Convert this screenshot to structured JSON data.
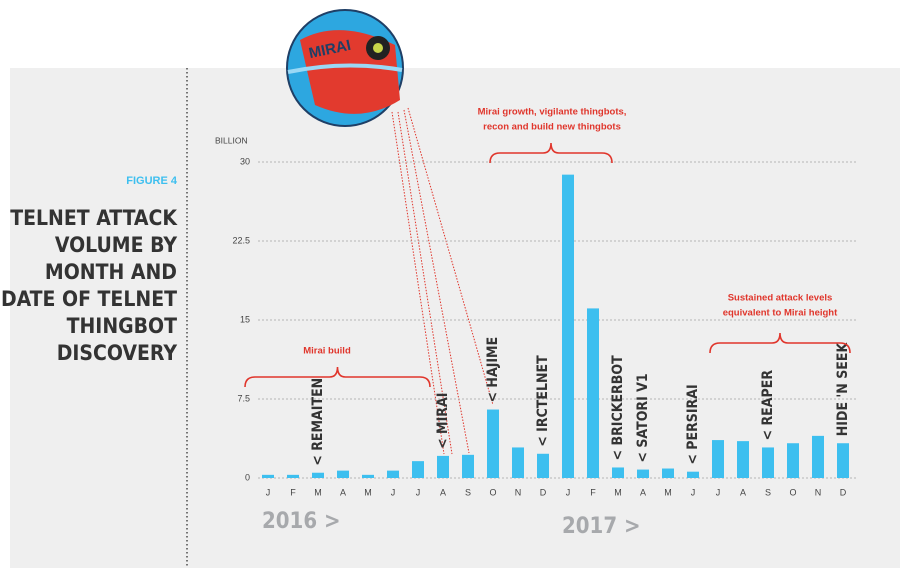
{
  "figure_label": "FIGURE 4",
  "title_lines": [
    "TELNET ATTACK",
    "VOLUME BY",
    "MONTH AND",
    "DATE OF TELNET",
    "THINGBOT",
    "DISCOVERY"
  ],
  "illustration_text": "MIRAI",
  "chart_data": {
    "type": "bar",
    "y_axis_label": "BILLION",
    "categories": [
      "J",
      "F",
      "M",
      "A",
      "M",
      "J",
      "J",
      "A",
      "S",
      "O",
      "N",
      "D",
      "J",
      "F",
      "M",
      "A",
      "M",
      "J",
      "J",
      "A",
      "S",
      "O",
      "N",
      "D"
    ],
    "values": [
      0.3,
      0.3,
      0.5,
      0.7,
      0.3,
      0.7,
      1.6,
      2.1,
      2.2,
      6.5,
      2.9,
      2.3,
      28.8,
      16.1,
      1.0,
      0.8,
      0.9,
      0.6,
      3.6,
      3.5,
      2.9,
      3.3,
      4.0,
      3.3
    ],
    "discoveries": [
      null,
      null,
      "< REMAITEN",
      null,
      null,
      null,
      null,
      "< MIRAI",
      null,
      "< HAJIME",
      null,
      "< IRCTELNET",
      null,
      null,
      "< BRICKERBOT",
      "< SATORI V1",
      null,
      "< PERSIRAI",
      null,
      null,
      "< REAPER",
      null,
      null,
      "HIDE 'N SEEK"
    ],
    "color": "#3dbfef",
    "ylim": [
      0,
      30
    ],
    "yticks": [
      0,
      7.5,
      15,
      22.5,
      30
    ],
    "grid": true,
    "years": [
      "2016 >",
      "2017 >"
    ],
    "annotations": [
      [
        "Mirai build"
      ],
      [
        "Mirai growth, vigilante thingbots,",
        "recon and build new thingbots"
      ],
      [
        "Sustained attack levels",
        "equivalent to Mirai height"
      ]
    ]
  }
}
